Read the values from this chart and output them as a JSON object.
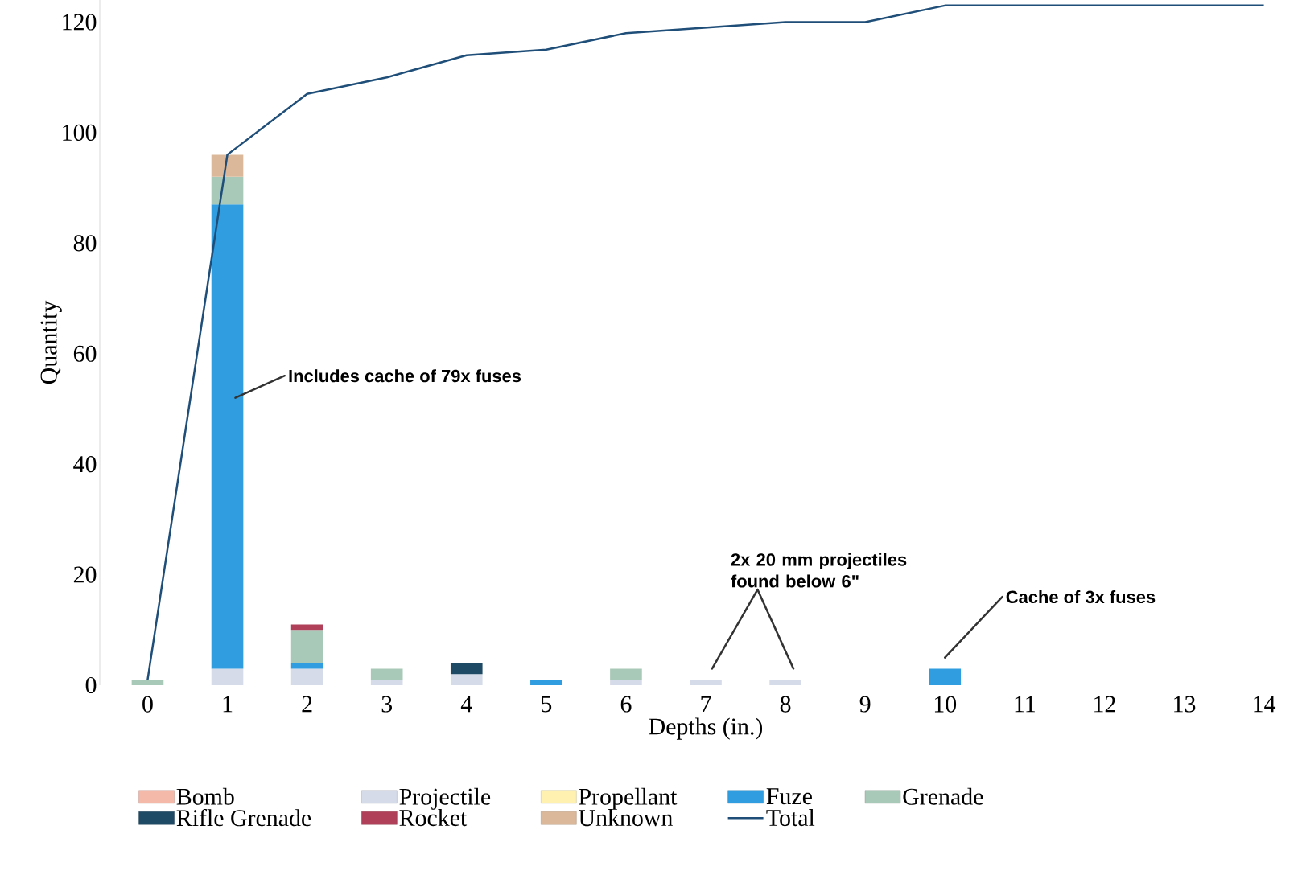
{
  "chart_data": {
    "type": "bar",
    "stacked": true,
    "xlabel": "Depths (in.)",
    "ylabel": "Quantity",
    "x": [
      0,
      1,
      2,
      3,
      4,
      5,
      6,
      7,
      8,
      9,
      10,
      11,
      12,
      13,
      14
    ],
    "xlim": [
      0,
      14
    ],
    "xticks": [
      0,
      1,
      2,
      3,
      4,
      5,
      6,
      7,
      8,
      9,
      10,
      11,
      12,
      13,
      14
    ],
    "ylim": [
      0,
      124
    ],
    "yticks": [
      0,
      20,
      40,
      60,
      80,
      100,
      120
    ],
    "grid": false,
    "legend": "bottom",
    "series": [
      {
        "name": "Bomb",
        "color": "#f4b9a8",
        "values": [
          null,
          null,
          null,
          null,
          null,
          null,
          null,
          null,
          null,
          null,
          null,
          null,
          null,
          null,
          null
        ]
      },
      {
        "name": "Projectile",
        "color": "#d5dbe8",
        "values": [
          null,
          3,
          3,
          1,
          2,
          null,
          1,
          1,
          1,
          null,
          null,
          null,
          null,
          null,
          null
        ]
      },
      {
        "name": "Propellant",
        "color": "#fff1b0",
        "values": [
          null,
          null,
          null,
          null,
          null,
          null,
          null,
          null,
          null,
          null,
          null,
          null,
          null,
          null,
          null
        ]
      },
      {
        "name": "Fuze",
        "color": "#2f9de0",
        "values": [
          null,
          84,
          1,
          null,
          null,
          1,
          null,
          null,
          null,
          null,
          3,
          null,
          null,
          null,
          null
        ]
      },
      {
        "name": "Grenade",
        "color": "#a9c9b8",
        "values": [
          1,
          5,
          6,
          2,
          null,
          null,
          2,
          null,
          null,
          null,
          null,
          null,
          null,
          null,
          null
        ]
      },
      {
        "name": "Rifle Grenade",
        "color": "#1f4a66",
        "values": [
          null,
          null,
          null,
          null,
          2,
          null,
          null,
          null,
          null,
          null,
          null,
          null,
          null,
          null,
          null
        ]
      },
      {
        "name": "Rocket",
        "color": "#b0405a",
        "values": [
          null,
          null,
          1,
          null,
          null,
          null,
          null,
          null,
          null,
          null,
          null,
          null,
          null,
          null,
          null
        ]
      },
      {
        "name": "Unknown",
        "color": "#dcb89a",
        "values": [
          null,
          4,
          null,
          null,
          null,
          null,
          null,
          null,
          null,
          null,
          null,
          null,
          null,
          null,
          null
        ]
      },
      {
        "name": "Total",
        "type": "line",
        "color": "#1f4e79",
        "values": [
          1,
          96,
          107,
          110,
          114,
          115,
          118,
          119,
          120,
          120,
          123,
          123,
          123,
          123,
          123
        ]
      }
    ],
    "annotations": [
      "Includes cache of 79x fuses",
      "2x 20 mm projectiles found below 6\"",
      "Cache of 3x fuses"
    ]
  }
}
